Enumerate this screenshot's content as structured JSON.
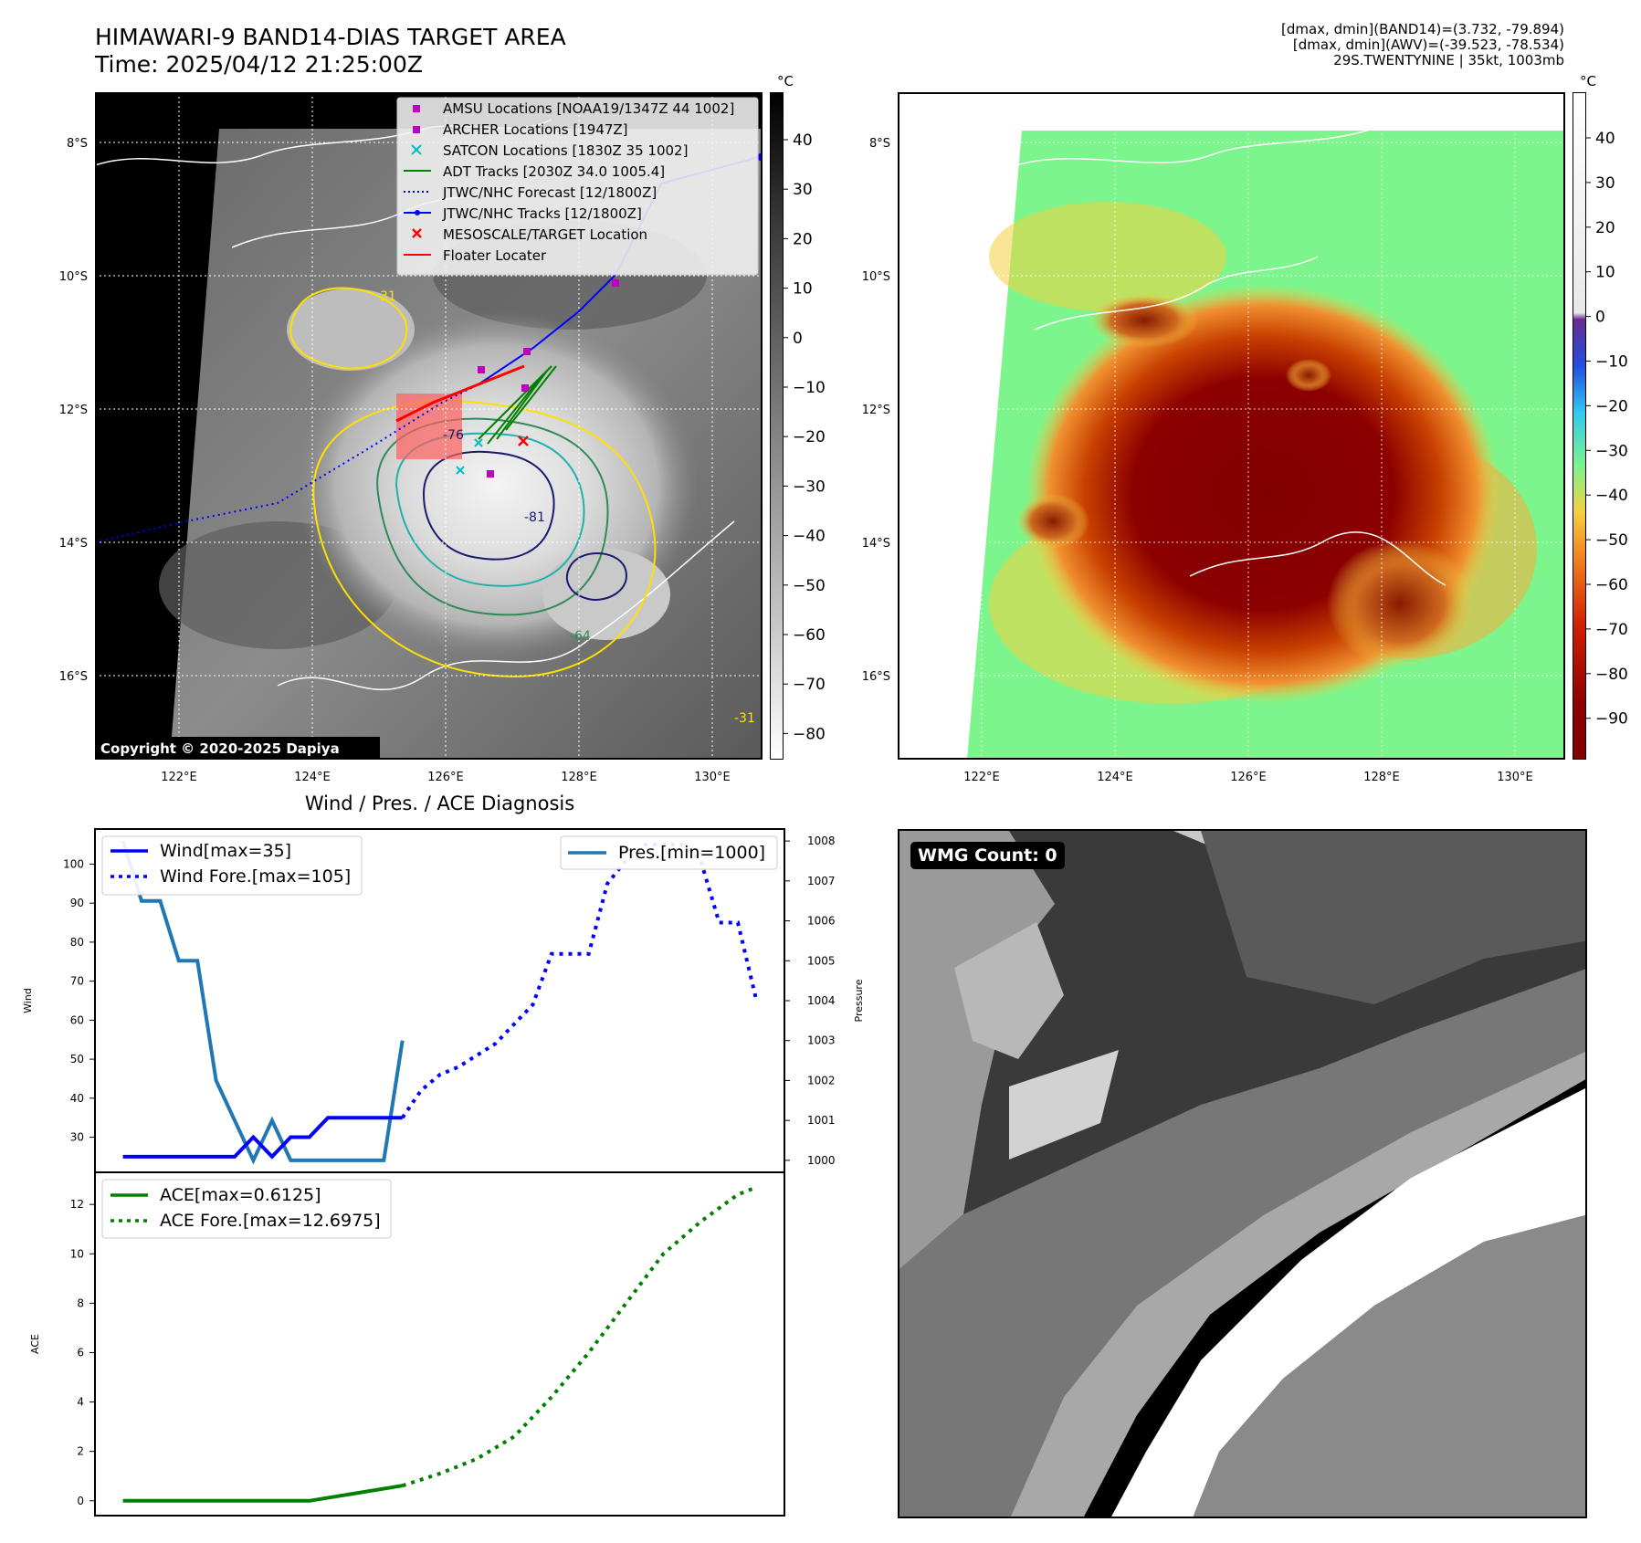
{
  "header": {
    "title": "HIMAWARI-9 BAND14-DIAS TARGET AREA",
    "time": "Time: 2025/04/12 21:25:00Z",
    "info_lines": [
      "[dmax, dmin](BAND14)=(3.732, -79.894)",
      "[dmax, dmin](AWV)=(-39.523, -78.534)",
      "29S.TWENTYNINE | 35kt, 1003mb"
    ]
  },
  "map_common": {
    "lon_ticks": [
      "122°E",
      "124°E",
      "126°E",
      "128°E",
      "130°E"
    ],
    "lat_ticks": [
      "8°S",
      "10°S",
      "12°S",
      "14°S",
      "16°S"
    ]
  },
  "ir_panel": {
    "colorbar_unit": "°C",
    "colorbar_ticks": [
      "40",
      "30",
      "20",
      "10",
      "0",
      "−10",
      "−20",
      "−30",
      "−40",
      "−50",
      "−60",
      "−70",
      "−80"
    ],
    "legend": [
      {
        "label": "AMSU Locations [NOAA19/1347Z 44 1002]",
        "marker": "square",
        "color": "#c000c0"
      },
      {
        "label": "ARCHER Locations [1947Z]",
        "marker": "square",
        "color": "#c000c0"
      },
      {
        "label": "SATCON Locations [1830Z 35 1002]",
        "marker": "x",
        "color": "#00c0c0"
      },
      {
        "label": "ADT Tracks [2030Z 34.0 1005.4]",
        "marker": "line",
        "color": "#008000"
      },
      {
        "label": "JTWC/NHC Forecast [12/1800Z]",
        "marker": "dotted",
        "color": "#0000ff"
      },
      {
        "label": "JTWC/NHC Tracks [12/1800Z]",
        "marker": "line-dot",
        "color": "#0000ff"
      },
      {
        "label": "MESOSCALE/TARGET Location",
        "marker": "x",
        "color": "#ff0000"
      },
      {
        "label": "Floater Locater",
        "marker": "line",
        "color": "#ff0000"
      }
    ],
    "contour_labels": [
      "31",
      "-76",
      "-81",
      "-64",
      "-31"
    ],
    "copyright": "Copyright © 2020-2025 Dapiya"
  },
  "awv_panel": {
    "colorbar_unit": "°C",
    "colorbar_ticks": [
      "40",
      "30",
      "20",
      "10",
      "0",
      "−10",
      "−20",
      "−30",
      "−40",
      "−50",
      "−60",
      "−70",
      "−80",
      "−90"
    ]
  },
  "diagnosis": {
    "title": "Wind / Pres. / ACE Diagnosis",
    "wind_ylabel": "Wind",
    "pressure_ylabel": "Pressure",
    "ace_ylabel": "ACE",
    "wind_ticks": [
      "100",
      "90",
      "80",
      "70",
      "60",
      "50",
      "40",
      "30"
    ],
    "pressure_ticks": [
      "1008",
      "1007",
      "1006",
      "1005",
      "1004",
      "1003",
      "1002",
      "1001",
      "1000"
    ],
    "ace_ticks": [
      "12",
      "10",
      "8",
      "6",
      "4",
      "2",
      "0"
    ],
    "legend_wind": "Wind[max=35]",
    "legend_wind_fore": "Wind Fore.[max=105]",
    "legend_pres": "Pres.[min=1000]",
    "legend_ace": "ACE[max=0.6125]",
    "legend_ace_fore": "ACE Fore.[max=12.6975]"
  },
  "wmg_panel": {
    "label": "WMG Count: 0"
  },
  "chart_data": [
    {
      "type": "line",
      "title": "Wind / Pres. / ACE Diagnosis",
      "xlabel": "",
      "ylabel": "Wind",
      "ylim": [
        21,
        109
      ],
      "series": [
        {
          "name": "Wind[max=35]",
          "color": "#0000ff",
          "style": "solid",
          "x": [
            0,
            1,
            2,
            3,
            4,
            5,
            6,
            7,
            8,
            9,
            10,
            11,
            12,
            13,
            14,
            15
          ],
          "values": [
            25,
            25,
            25,
            25,
            25,
            25,
            25,
            30,
            25,
            30,
            30,
            35,
            35,
            35,
            35,
            35
          ]
        },
        {
          "name": "Wind Fore.[max=105]",
          "color": "#0000ff",
          "style": "dotted",
          "x": [
            15,
            16,
            17,
            18,
            19,
            20,
            21,
            22,
            23,
            24,
            25,
            26,
            27,
            28,
            29,
            30,
            31,
            32,
            33,
            34
          ],
          "values": [
            35,
            42,
            46,
            48,
            51,
            54,
            59,
            64,
            77,
            77,
            77,
            95,
            101,
            105,
            105,
            105,
            101,
            85,
            85,
            65
          ]
        }
      ]
    },
    {
      "type": "line",
      "ylabel": "Pressure",
      "ylim": [
        999.7,
        1008.3
      ],
      "series": [
        {
          "name": "Pres.[min=1000]",
          "color": "#1f77b4",
          "style": "solid",
          "x": [
            0,
            1,
            2,
            3,
            4,
            5,
            6,
            7,
            8,
            9,
            10,
            11,
            12,
            13,
            14,
            15
          ],
          "values": [
            1008,
            1006.5,
            1006.5,
            1005,
            1005,
            1002,
            1001,
            1000,
            1001,
            1000,
            1000,
            1000,
            1000,
            1000,
            1000,
            1003
          ]
        }
      ]
    },
    {
      "type": "line",
      "ylabel": "ACE",
      "ylim": [
        -0.6,
        13.3
      ],
      "series": [
        {
          "name": "ACE[max=0.6125]",
          "color": "#008000",
          "style": "solid",
          "x": [
            0,
            5,
            10,
            15
          ],
          "values": [
            0,
            0,
            0,
            0.6125
          ]
        },
        {
          "name": "ACE Fore.[max=12.6975]",
          "color": "#008000",
          "style": "dotted",
          "x": [
            15,
            17,
            19,
            21,
            23,
            25,
            27,
            29,
            31,
            33,
            34
          ],
          "values": [
            0.6125,
            1.1,
            1.7,
            2.6,
            4.2,
            6.0,
            8.0,
            10.0,
            11.3,
            12.4,
            12.6975
          ]
        }
      ]
    }
  ]
}
